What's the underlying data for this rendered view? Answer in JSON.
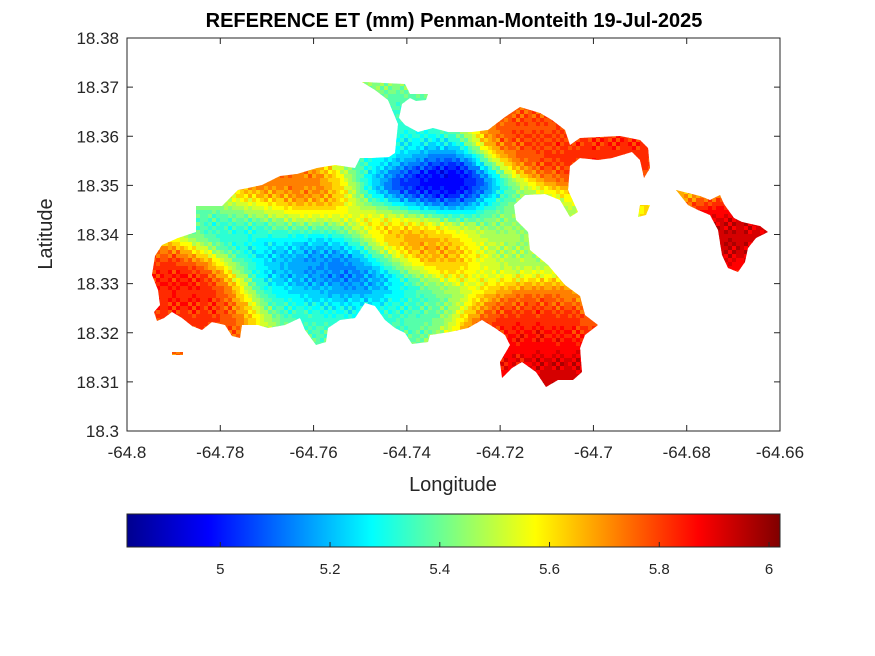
{
  "chart_data": {
    "type": "heatmap",
    "title": "REFERENCE ET (mm) Penman-Monteith 19-Jul-2025",
    "xlabel": "Longitude",
    "ylabel": "Latitude",
    "xlim": [
      -64.8,
      -64.66
    ],
    "ylim": [
      18.3,
      18.38
    ],
    "xticks": [
      -64.8,
      -64.78,
      -64.76,
      -64.74,
      -64.72,
      -64.7,
      -64.68,
      -64.66
    ],
    "xtick_labels": [
      "-64.8",
      "-64.78",
      "-64.76",
      "-64.74",
      "-64.72",
      "-64.7",
      "-64.68",
      "-64.66"
    ],
    "yticks": [
      18.3,
      18.31,
      18.32,
      18.33,
      18.34,
      18.35,
      18.36,
      18.37,
      18.38
    ],
    "ytick_labels": [
      "18.3",
      "18.31",
      "18.32",
      "18.33",
      "18.34",
      "18.35",
      "18.36",
      "18.37",
      "18.38"
    ],
    "grid": false,
    "colormap": "jet",
    "colorbar": {
      "orientation": "horizontal",
      "location": "below",
      "range": [
        4.83,
        6.02
      ],
      "ticks": [
        5,
        5.2,
        5.4,
        5.6,
        5.8,
        6
      ],
      "tick_labels": [
        "5",
        "5.2",
        "5.4",
        "5.6",
        "5.8",
        "6"
      ]
    },
    "field": {
      "background": 5.5,
      "features": [
        {
          "lon": -64.733,
          "lat": 18.35,
          "value": 4.85
        },
        {
          "lon": -64.752,
          "lat": 18.331,
          "value": 5.0
        },
        {
          "lon": -64.764,
          "lat": 18.333,
          "value": 5.15
        },
        {
          "lon": -64.774,
          "lat": 18.341,
          "value": 5.25
        },
        {
          "lon": -64.742,
          "lat": 18.36,
          "value": 5.3
        },
        {
          "lon": -64.743,
          "lat": 18.323,
          "value": 5.35
        },
        {
          "lon": -64.76,
          "lat": 18.324,
          "value": 5.35
        },
        {
          "lon": -64.715,
          "lat": 18.342,
          "value": 5.45
        },
        {
          "lon": -64.788,
          "lat": 18.33,
          "value": 5.9
        },
        {
          "lon": -64.784,
          "lat": 18.322,
          "value": 5.85
        },
        {
          "lon": -64.712,
          "lat": 18.36,
          "value": 5.85
        },
        {
          "lon": -64.768,
          "lat": 18.349,
          "value": 5.8
        },
        {
          "lon": -64.711,
          "lat": 18.321,
          "value": 5.85
        },
        {
          "lon": -64.708,
          "lat": 18.312,
          "value": 6.0
        },
        {
          "lon": -64.717,
          "lat": 18.316,
          "value": 5.9
        },
        {
          "lon": -64.705,
          "lat": 18.36,
          "value": 5.75
        },
        {
          "lon": -64.69,
          "lat": 18.358,
          "value": 5.85
        },
        {
          "lon": -64.671,
          "lat": 18.339,
          "value": 6.0
        },
        {
          "lon": -64.738,
          "lat": 18.339,
          "value": 5.75
        },
        {
          "lon": -64.7,
          "lat": 18.357,
          "value": 5.9
        }
      ]
    }
  }
}
